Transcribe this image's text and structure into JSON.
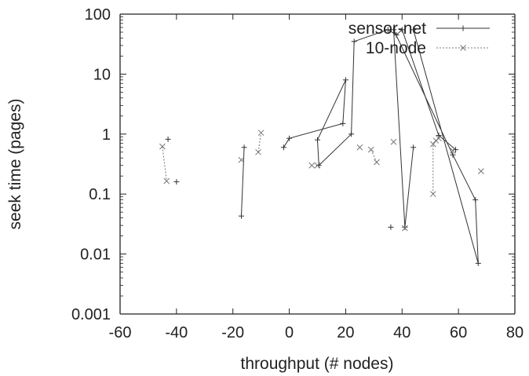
{
  "chart_data": {
    "type": "line",
    "title": "",
    "xlabel": "throughput (# nodes)",
    "ylabel": "seek time (pages)",
    "xlim": [
      -60,
      80
    ],
    "ylim": [
      0.001,
      100
    ],
    "yscale": "log",
    "x_ticks": [
      -60,
      -40,
      -20,
      0,
      20,
      40,
      60,
      80
    ],
    "x_tick_labels": [
      "-60",
      "-40",
      "-20",
      "0",
      "20",
      "40",
      "60",
      "80"
    ],
    "y_ticks": [
      0.001,
      0.01,
      0.1,
      1,
      10,
      100
    ],
    "y_tick_labels": [
      "0.001",
      "0.01",
      "0.1",
      "1",
      "10",
      "100"
    ],
    "grid": false,
    "legend_position": "top-right",
    "series": [
      {
        "name": "sensor-net",
        "marker": "+",
        "line": "solid",
        "color": "#333333",
        "segments": [
          [
            [
              -43,
              0.82
            ]
          ],
          [
            [
              -40,
              0.16
            ]
          ],
          [
            [
              -17,
              0.043
            ],
            [
              -16,
              0.6
            ]
          ],
          [
            [
              -2,
              0.6
            ],
            [
              0,
              0.85
            ],
            [
              19,
              1.5
            ],
            [
              20,
              8
            ],
            [
              10,
              0.8
            ],
            [
              10.5,
              0.3
            ],
            [
              22,
              1.0
            ],
            [
              23,
              35
            ],
            [
              35,
              55
            ],
            [
              38,
              45
            ],
            [
              40,
              55
            ],
            [
              53,
              0.95
            ],
            [
              59,
              0.55
            ]
          ],
          [
            [
              44,
              0.6
            ],
            [
              41,
              0.028
            ],
            [
              37,
              55
            ],
            [
              58,
              0.45
            ],
            [
              66,
              0.08
            ],
            [
              67,
              0.007
            ],
            [
              44,
              55
            ]
          ],
          [
            [
              36,
              0.028
            ]
          ]
        ]
      },
      {
        "name": "10-node",
        "marker": "x",
        "line": "dashed",
        "color": "#777777",
        "segments": [
          [
            [
              -45,
              0.62
            ],
            [
              -43.5,
              0.165
            ]
          ],
          [
            [
              -17,
              0.37
            ]
          ],
          [
            [
              -11,
              0.5
            ],
            [
              -10,
              1.05
            ]
          ],
          [
            [
              8,
              0.3
            ]
          ],
          [
            [
              10,
              0.3
            ]
          ],
          [
            [
              25,
              0.6
            ]
          ],
          [
            [
              29,
              0.55
            ],
            [
              31,
              0.34
            ]
          ],
          [
            [
              37,
              0.74
            ]
          ],
          [
            [
              41,
              0.027
            ]
          ],
          [
            [
              51,
              0.1
            ],
            [
              51,
              0.68
            ],
            [
              52,
              0.78
            ],
            [
              53,
              0.85
            ]
          ],
          [
            [
              58,
              0.53
            ]
          ],
          [
            [
              68,
              0.24
            ]
          ]
        ]
      }
    ]
  }
}
